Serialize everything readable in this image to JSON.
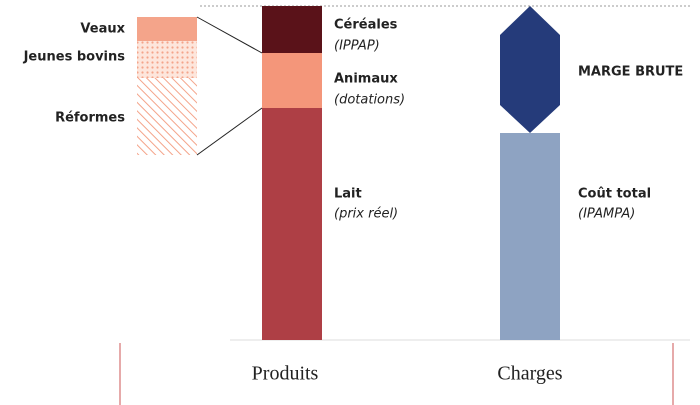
{
  "detail_labels": [
    "Veaux",
    "Jeunes bovins",
    "Réformes"
  ],
  "produits": {
    "label": "Produits",
    "segments": [
      {
        "name": "Céréales",
        "note": "(IPPAP)"
      },
      {
        "name": "Animaux",
        "note": "(dotations)"
      },
      {
        "name": "Lait",
        "note": "(prix réel)"
      }
    ]
  },
  "charges": {
    "label": "Charges",
    "margin": "MARGE BRUTE",
    "cost": {
      "name": "Coût total",
      "note": "(IPAMPA)"
    }
  }
}
